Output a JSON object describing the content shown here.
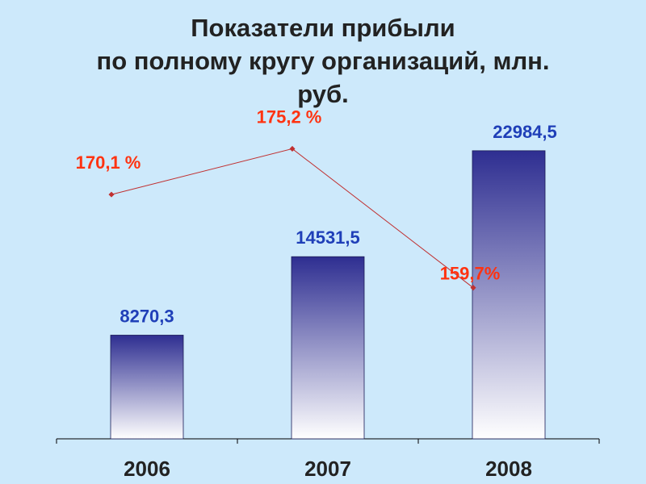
{
  "title_lines": [
    "Показатели прибыли",
    "по полному кругу организаций, млн.",
    "руб."
  ],
  "chart_data": {
    "type": "bar",
    "title": "Показатели прибыли по полному кругу организаций, млн. руб.",
    "categories": [
      "2006",
      "2007",
      "2008"
    ],
    "series": [
      {
        "name": "",
        "kind": "bar",
        "values": [
          8270.3,
          14531.5,
          22984.5
        ],
        "labels": [
          "8270,3",
          "14531,5",
          "22984,5"
        ]
      },
      {
        "name": "",
        "kind": "line",
        "values": [
          170.1,
          175.2,
          159.7
        ],
        "labels": [
          "170,1 %",
          "175,2 %",
          "159,7%"
        ]
      }
    ],
    "ylim": [
      0,
      26000
    ],
    "grid": false,
    "legend": "none",
    "colors": {
      "bar_top": "#2e2e91",
      "bar_bottom": "#ffffff",
      "bar_label": "#1f3fb8",
      "line": "#c03030",
      "line_label": "#ff3311",
      "tick_label": "#222222",
      "axis": "#000000"
    }
  }
}
